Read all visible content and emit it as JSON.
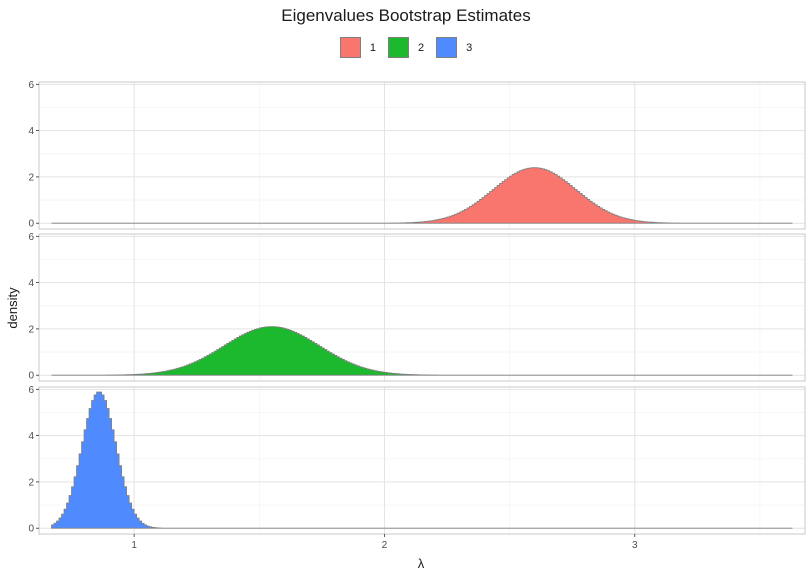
{
  "chart_data": {
    "type": "area",
    "title": "Eigenvalues Bootstrap Estimates",
    "xlabel": "λ",
    "ylabel": "density",
    "xlim": [
      0.62,
      3.68
    ],
    "ylim": [
      -0.25,
      6.1
    ],
    "x_ticks": [
      1,
      2,
      3
    ],
    "x_tick_labels": [
      "1",
      "2",
      "3"
    ],
    "y_ticks": [
      0,
      2,
      4,
      6
    ],
    "y_tick_labels": [
      "0",
      "2",
      "4",
      "6"
    ],
    "grid": true,
    "legend_position": "top",
    "facets": "vertical",
    "x_range_data": [
      0.67,
      3.63
    ],
    "series": [
      {
        "name": "1",
        "color": "#F8766D",
        "mean": 2.6,
        "sd": 0.165,
        "peak": 2.4
      },
      {
        "name": "2",
        "color": "#1CB82E",
        "mean": 1.55,
        "sd": 0.19,
        "peak": 2.1
      },
      {
        "name": "3",
        "color": "#4F8BFF",
        "mean": 0.86,
        "sd": 0.068,
        "peak": 5.9
      }
    ]
  }
}
